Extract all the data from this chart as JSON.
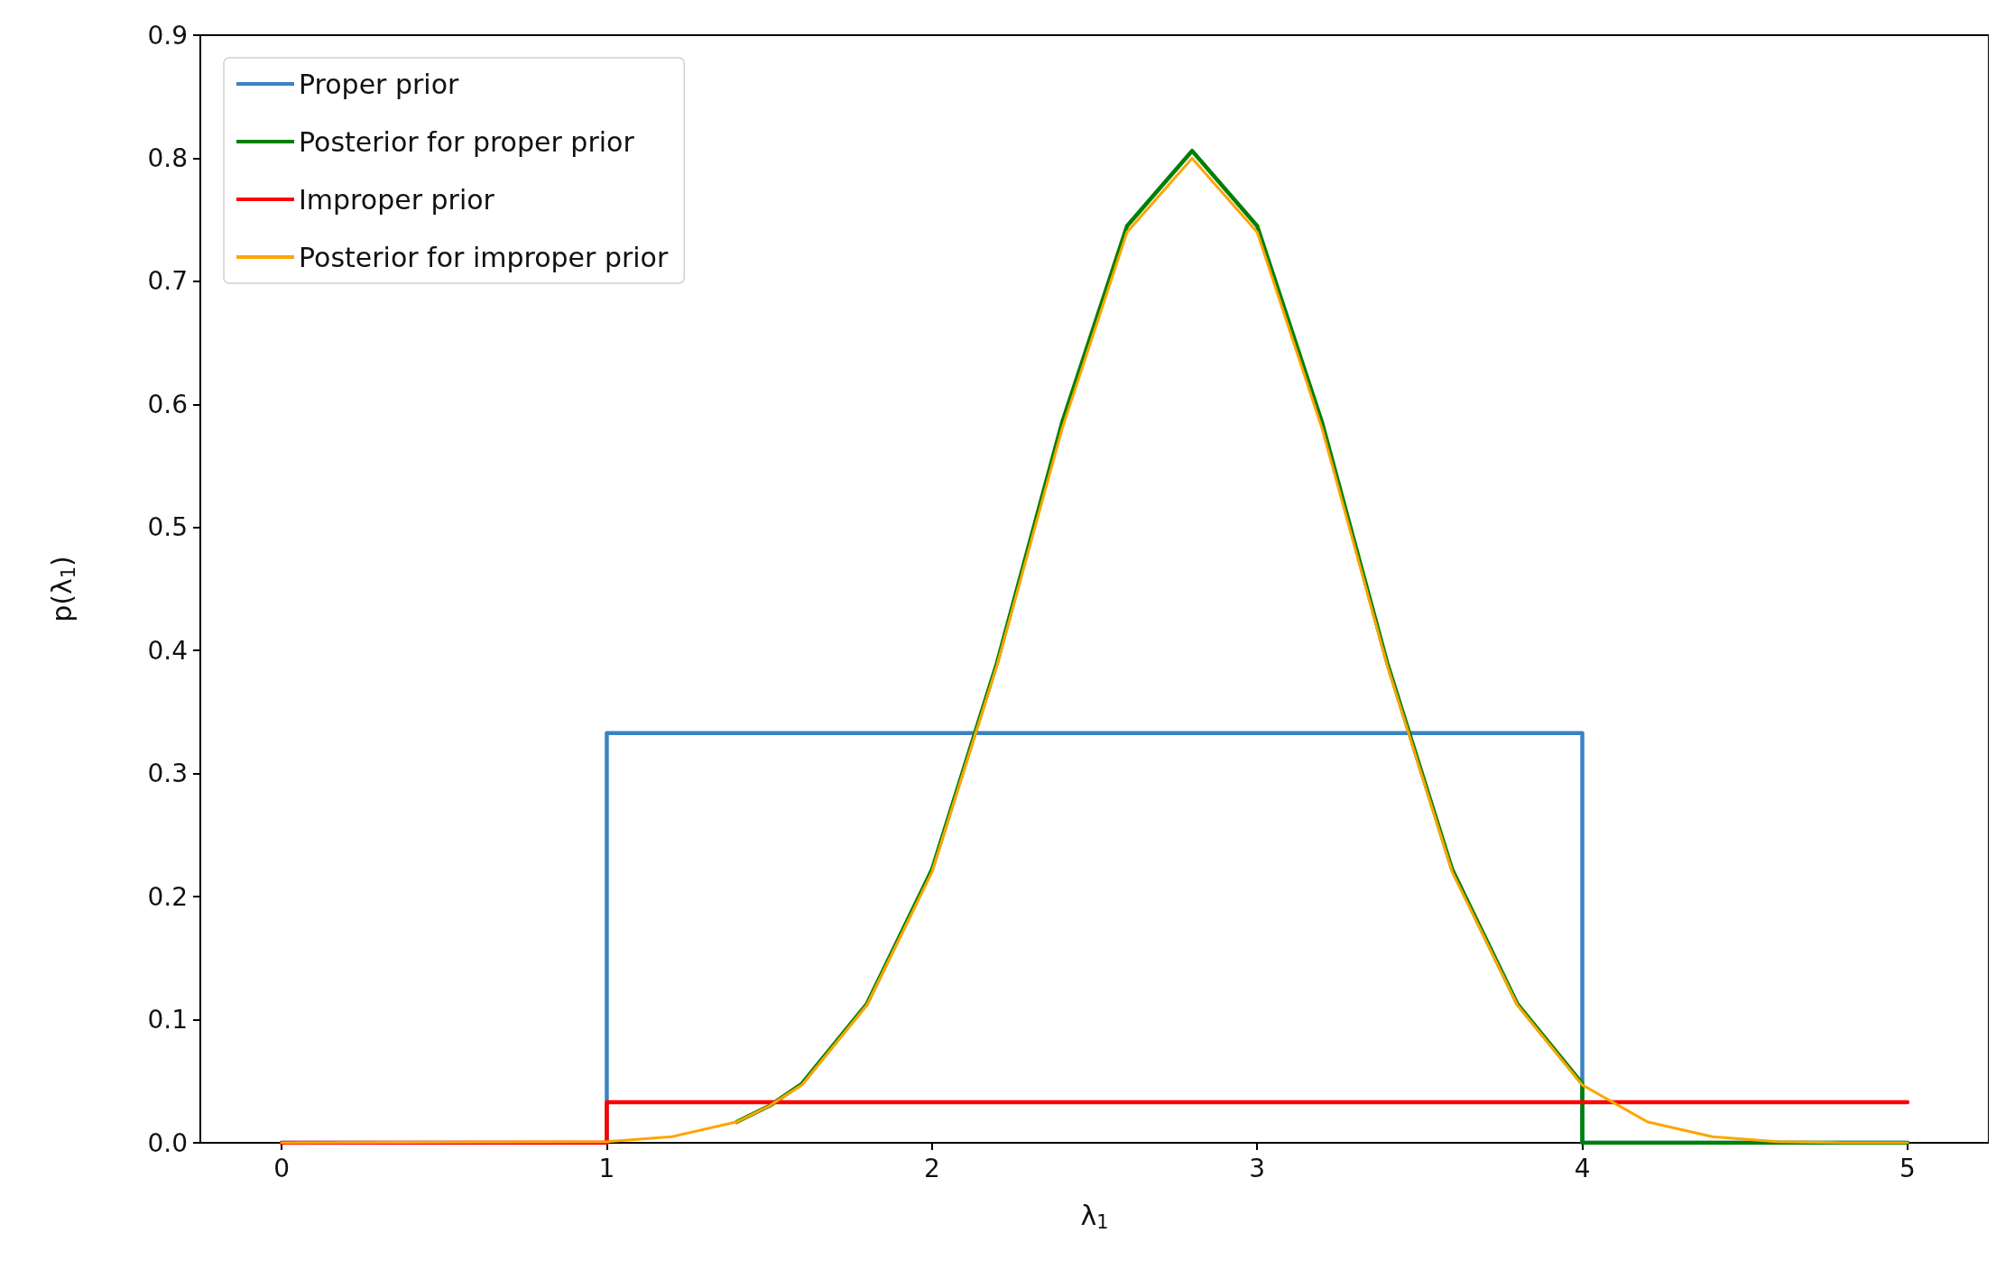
{
  "chart_data": {
    "type": "line",
    "xlabel": "λ$_{1}$",
    "ylabel": "p(λ$_{1}$)",
    "xlim": [
      -0.25,
      5.25
    ],
    "ylim": [
      0,
      0.9
    ],
    "xticks": [
      0,
      1,
      2,
      3,
      4,
      5
    ],
    "yticks": [
      {
        "value": 0,
        "label": "0.0"
      },
      {
        "value": 0.1,
        "label": "0.1"
      },
      {
        "value": 0.2,
        "label": "0.2"
      },
      {
        "value": 0.3,
        "label": "0.3"
      },
      {
        "value": 0.4,
        "label": "0.4"
      },
      {
        "value": 0.5,
        "label": "0.5"
      },
      {
        "value": 0.6,
        "label": "0.6"
      },
      {
        "value": 0.7,
        "label": "0.7"
      },
      {
        "value": 0.8,
        "label": "0.8"
      },
      {
        "value": 0.9,
        "label": "0.9"
      }
    ],
    "grid": false,
    "legend": "top left",
    "marker": "none",
    "line_style": "solid",
    "series": [
      {
        "name": "Proper prior",
        "color": "#3b82c4",
        "x": [
          0,
          1,
          1,
          4,
          4,
          5
        ],
        "values": [
          0,
          0,
          0.333,
          0.333,
          0,
          0
        ]
      },
      {
        "name": "Posterior for proper prior",
        "color": "#008000",
        "x": [
          1.4,
          1.5,
          1.6,
          1.8,
          2,
          2.2,
          2.4,
          2.6,
          2.8,
          3,
          3.2,
          3.4,
          3.6,
          3.8,
          4,
          4,
          5
        ],
        "values": [
          0.017,
          0.03,
          0.048,
          0.113,
          0.222,
          0.39,
          0.585,
          0.745,
          0.806,
          0.745,
          0.585,
          0.39,
          0.222,
          0.113,
          0.048,
          0,
          0
        ]
      },
      {
        "name": "Improper prior",
        "color": "#ff0000",
        "x": [
          0,
          1,
          1,
          5
        ],
        "values": [
          0,
          0,
          0.033,
          0.033
        ]
      },
      {
        "name": "Posterior for improper prior",
        "color": "#ffa500",
        "x": [
          0,
          1,
          1.2,
          1.4,
          1.5,
          1.6,
          1.8,
          2,
          2.2,
          2.4,
          2.6,
          2.8,
          3,
          3.2,
          3.4,
          3.6,
          3.8,
          4,
          4.2,
          4.4,
          4.6,
          4.8,
          5
        ],
        "values": [
          0,
          0.001,
          0.005,
          0.017,
          0.03,
          0.047,
          0.112,
          0.22,
          0.388,
          0.58,
          0.74,
          0.8,
          0.74,
          0.58,
          0.388,
          0.22,
          0.112,
          0.047,
          0.017,
          0.005,
          0.001,
          0,
          0
        ]
      }
    ]
  }
}
